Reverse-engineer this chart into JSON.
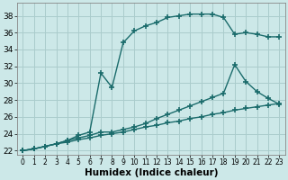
{
  "bg_color": "#cce8e8",
  "grid_color": "#aacccc",
  "line_color": "#1a6b6b",
  "line_width": 1.0,
  "marker": "+",
  "marker_size": 4,
  "marker_edge_width": 1.2,
  "xlabel": "Humidex (Indice chaleur)",
  "xlabel_fontsize": 7.5,
  "xlabel_fontweight": "bold",
  "ytick_fontsize": 6.5,
  "xtick_fontsize": 5.5,
  "ylim": [
    21.5,
    39.5
  ],
  "xlim": [
    -0.5,
    23.5
  ],
  "yticks": [
    22,
    24,
    26,
    28,
    30,
    32,
    34,
    36,
    38
  ],
  "xticks": [
    0,
    1,
    2,
    3,
    4,
    5,
    6,
    7,
    8,
    9,
    10,
    11,
    12,
    13,
    14,
    15,
    16,
    17,
    18,
    19,
    20,
    21,
    22,
    23
  ],
  "curve1_x": [
    0,
    1,
    2,
    3,
    4,
    5,
    6,
    7,
    8,
    9,
    10,
    11,
    12,
    13,
    14,
    15,
    16,
    17,
    18,
    19,
    20,
    21,
    22,
    23
  ],
  "curve1_y": [
    22.0,
    22.2,
    22.5,
    22.8,
    23.0,
    23.3,
    23.5,
    23.8,
    24.0,
    24.2,
    24.5,
    24.8,
    25.0,
    25.3,
    25.5,
    25.8,
    26.0,
    26.3,
    26.5,
    26.8,
    27.0,
    27.2,
    27.4,
    27.6
  ],
  "curve2_x": [
    0,
    1,
    2,
    3,
    4,
    5,
    6,
    7,
    8,
    9,
    10,
    11,
    12,
    13,
    14,
    15,
    16,
    17,
    18,
    19,
    20,
    21,
    22,
    23
  ],
  "curve2_y": [
    22.0,
    22.2,
    22.5,
    22.8,
    23.2,
    23.5,
    23.8,
    24.2,
    24.2,
    24.5,
    24.8,
    25.2,
    25.8,
    26.3,
    26.8,
    27.3,
    27.8,
    28.3,
    28.8,
    32.2,
    30.2,
    29.0,
    28.2,
    27.5
  ],
  "curve3_x": [
    0,
    1,
    2,
    3,
    4,
    5,
    6,
    7,
    8,
    9,
    10,
    11,
    12,
    13,
    14,
    15,
    16,
    17,
    18,
    19,
    20,
    21,
    22,
    23
  ],
  "curve3_y": [
    22.0,
    22.2,
    22.5,
    22.8,
    23.2,
    23.8,
    24.2,
    31.2,
    29.5,
    34.8,
    36.2,
    36.8,
    37.2,
    37.8,
    38.0,
    38.2,
    38.2,
    38.2,
    37.8,
    35.8,
    36.0,
    35.8,
    35.5,
    35.5
  ]
}
